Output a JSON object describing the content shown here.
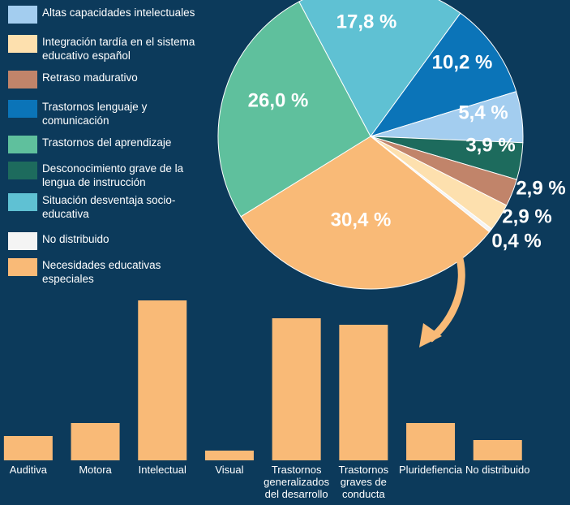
{
  "chart_data": [
    {
      "type": "pie",
      "categories": [
        "Situación desventaja socio-educativa",
        "Trastornos lenguaje y comunicación",
        "Altas capacidades intelectuales",
        "Desconocimiento grave de la lengua de instrucción",
        "Retraso madurativo",
        "Integración tardía en el sistema educativo español",
        "No distribuido",
        "Necesidades educativas especiales",
        "Trastornos del aprendizaje"
      ],
      "values": [
        17.8,
        10.2,
        5.4,
        3.9,
        2.9,
        2.9,
        0.4,
        30.4,
        26.0
      ],
      "value_labels": [
        "17,8 %",
        "10,2 %",
        "5,4 %",
        "3,9 %",
        "2,9 %",
        "2,9 %",
        "0,4 %",
        "30,4 %",
        "26,0 %"
      ],
      "colors": [
        "#5fc1d3",
        "#0b74b8",
        "#a3cdef",
        "#1d6b5d",
        "#c1846a",
        "#fde0ae",
        "#f4f4f4",
        "#f9ba77",
        "#5fc09d"
      ]
    },
    {
      "type": "bar",
      "categories": [
        "Auditiva",
        "Motora",
        "Intelectual",
        "Visual",
        "Trastornos generalizados del desarrollo",
        "Trastornos graves de conducta",
        "Pluridefiencia",
        "No distribuido"
      ],
      "values": [
        30,
        46,
        197,
        12,
        175,
        167,
        46,
        25
      ],
      "color": "#f9ba77",
      "ylim": [
        0,
        200
      ]
    }
  ]
}
